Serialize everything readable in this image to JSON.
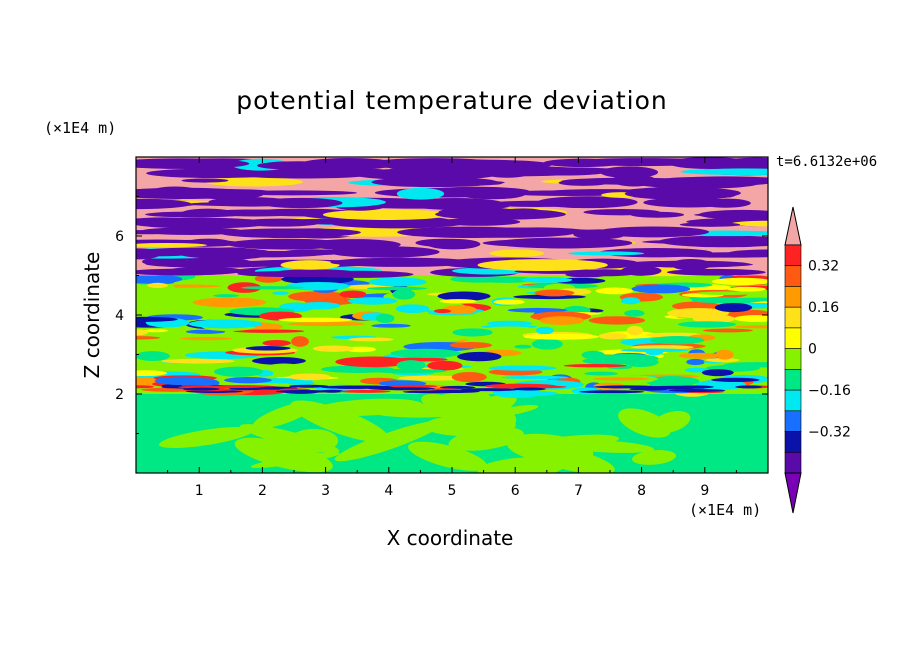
{
  "title": "potential temperature deviation",
  "time_label": "t=6.6132e+06",
  "chart_data": {
    "type": "heatmap",
    "title": "potential temperature deviation",
    "xlabel": "X coordinate",
    "ylabel": "Z coordinate",
    "x_unit": "(×1E4 m)",
    "z_unit": "(×1E4 m)",
    "xlim": [
      0,
      10
    ],
    "ylim": [
      0,
      8
    ],
    "x_ticks": [
      "1",
      "2",
      "3",
      "4",
      "5",
      "6",
      "7",
      "8",
      "9"
    ],
    "y_ticks": [
      "2",
      "4",
      "6"
    ],
    "colorbar": {
      "tick_labels": [
        "0.32",
        "0.16",
        "0",
        "−0.16",
        "−0.32"
      ],
      "tick_values": [
        0.32,
        0.16,
        0,
        -0.16,
        -0.32
      ],
      "level_step": 0.08,
      "colors": [
        "#f4a6a6",
        "#ff2222",
        "#ff5a12",
        "#ff9a00",
        "#ffe11a",
        "#ffff00",
        "#86f200",
        "#00e884",
        "#00e8f0",
        "#1770ff",
        "#0a12aa",
        "#5a0aa8",
        "#7a00b6"
      ],
      "extend": "both"
    },
    "layers": [
      {
        "z_range": [
          0,
          2
        ],
        "description_value": 0
      },
      {
        "z_range": [
          2,
          5
        ],
        "description_value": 0.04
      },
      {
        "z_range": [
          5,
          8
        ],
        "description_value": 0.3
      }
    ]
  }
}
